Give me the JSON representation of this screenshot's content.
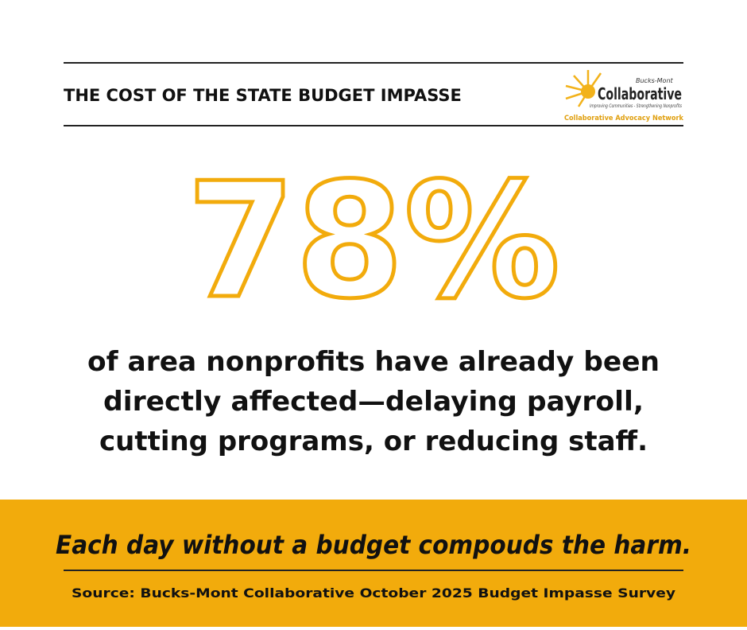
{
  "header": {
    "title": "THE COST OF THE STATE BUDGET IMPASSE"
  },
  "logo": {
    "small": "Bucks-Mont",
    "name": "Collaborative",
    "tagline": "Improving Communities - Strengthening Nonprofits",
    "network": "Collaborative Advocacy Network"
  },
  "statistic": {
    "value": "78%",
    "description": [
      "of area nonprofits have already been",
      "directly affected—delaying payroll,",
      "cutting programs, or reducing staff."
    ]
  },
  "footer": {
    "message": "Each day without a budget compouds the harm.",
    "source": "Source: Bucks-Mont Collaborative October 2025 Budget Impasse Survey"
  }
}
